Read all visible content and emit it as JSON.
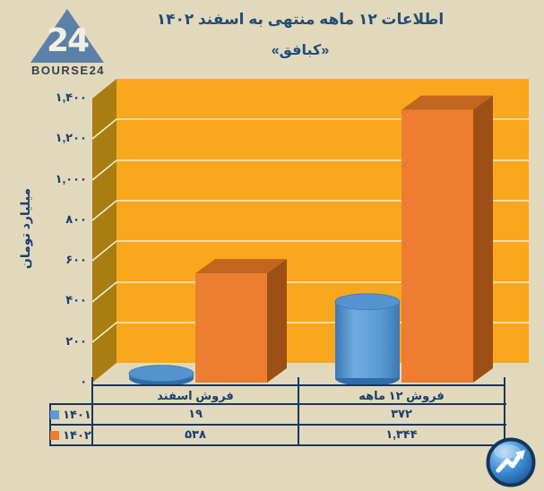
{
  "header": {
    "title": "اطلاعات ۱۲ ماهه منتهی به اسفند ۱۴۰۲",
    "subtitle": "«کبافق»"
  },
  "logo": {
    "number": "24",
    "brand": "BOURSE24"
  },
  "chart_data": {
    "type": "bar",
    "style": "3d-column",
    "categories": [
      "فروش اسفند",
      "فروش ۱۲ ماهه"
    ],
    "series": [
      {
        "name": "۱۴۰۱",
        "shape": "cylinder",
        "color": "#5B9BD5",
        "values": [
          19,
          372
        ],
        "labels": [
          "۱۹",
          "۳۷۲"
        ]
      },
      {
        "name": "۱۴۰۲",
        "shape": "box",
        "color": "#ED7D31",
        "values": [
          538,
          1344
        ],
        "labels": [
          "۵۳۸",
          "۱,۳۴۴"
        ]
      }
    ],
    "ylabel": "میلیارد تومان",
    "xlabel": "",
    "ylim": [
      0,
      1400
    ],
    "ytick_step": 200,
    "ytick_labels": [
      "۰",
      "۲۰۰",
      "۴۰۰",
      "۶۰۰",
      "۸۰۰",
      "۱,۰۰۰",
      "۱,۲۰۰",
      "۱,۴۰۰"
    ],
    "grid": true,
    "legend_position": "table-left",
    "colors": {
      "wall": "#F9A71D",
      "wall_side": "#A87E12",
      "gridline": "#F7ECCC",
      "background": "#E2D8BB",
      "text_navy": "#1B3E6F",
      "table_border": "#17375E",
      "orange_front": "#ED7D31",
      "orange_side": "#9C5015",
      "orange_top": "#C2661F",
      "blue_main": "#5B9BD5",
      "blue_dark": "#2E6DA8"
    }
  }
}
